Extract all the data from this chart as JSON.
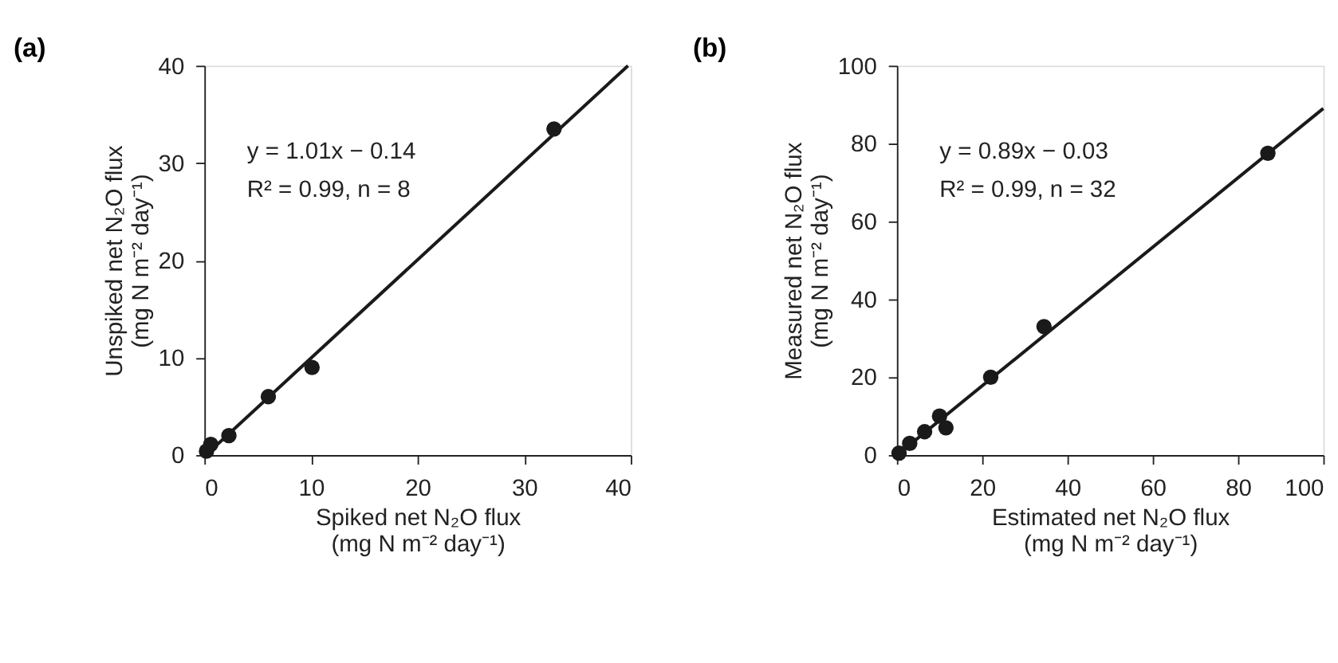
{
  "chart_data": [
    {
      "type": "scatter",
      "title": "(a)",
      "xlabel": "Spiked net N₂O flux\n(mg N m⁻² day⁻¹)",
      "ylabel": "Unspiked net N₂O flux\n(mg N m⁻² day⁻¹)",
      "xlim": [
        0,
        40
      ],
      "ylim": [
        0,
        40
      ],
      "xticks": [
        0,
        10,
        20,
        30,
        40
      ],
      "yticks": [
        0,
        10,
        20,
        30,
        40
      ],
      "grid": false,
      "annotations": [
        "y = 1.01x − 0.14",
        "R² = 0.99, n = 8"
      ],
      "series": [
        {
          "color": "#1a1a1a",
          "marker": "circle",
          "x": [
            32.8,
            10.1,
            6.0,
            2.3,
            0.6,
            0.2
          ],
          "values": [
            33.5,
            9.0,
            6.0,
            2.0,
            1.1,
            0.4
          ]
        },
        {
          "type": "line",
          "marker": "none",
          "line_style": "solid",
          "color": "#1a1a1a",
          "x": [
            0.14,
            39.74
          ],
          "values": [
            0.0,
            40.0
          ]
        }
      ]
    },
    {
      "type": "scatter",
      "title": "(b)",
      "xlabel": "Estimated net N₂O flux\n(mg N m⁻² day⁻¹)",
      "ylabel": "Measured net N₂O flux\n(mg N m⁻² day⁻¹)",
      "xlim": [
        0,
        100
      ],
      "ylim": [
        0,
        100
      ],
      "xticks": [
        0,
        20,
        40,
        60,
        80,
        100
      ],
      "yticks": [
        0,
        20,
        40,
        60,
        80,
        100
      ],
      "grid": false,
      "annotations": [
        "y = 0.89x − 0.03",
        "R² = 0.99, n = 32"
      ],
      "series": [
        {
          "color": "#1a1a1a",
          "marker": "circle",
          "x": [
            87,
            34.5,
            22,
            10,
            11.5,
            6.5,
            3,
            0.5
          ],
          "values": [
            77.5,
            33,
            20,
            10,
            7,
            6,
            3,
            0.5
          ]
        },
        {
          "type": "line",
          "marker": "none",
          "line_style": "solid",
          "color": "#1a1a1a",
          "x": [
            0.03,
            100
          ],
          "values": [
            0.0,
            89
          ]
        }
      ]
    }
  ]
}
